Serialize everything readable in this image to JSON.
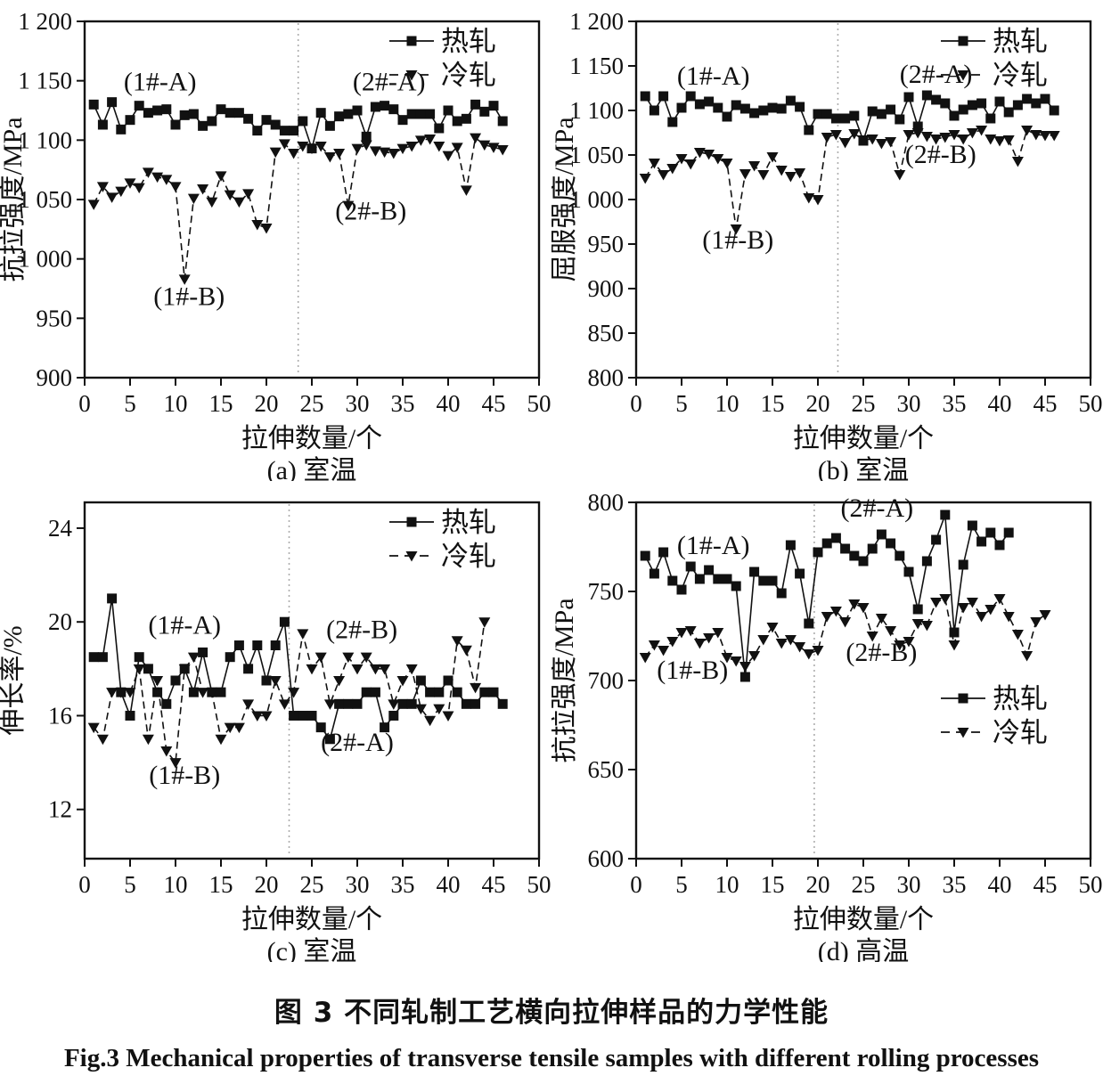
{
  "figure": {
    "caption_zh": "图 3  不同轧制工艺横向拉伸样品的力学性能",
    "caption_en": "Fig.3  Mechanical properties of transverse tensile samples with different rolling processes"
  },
  "chart_data": [
    {
      "id": "a",
      "type": "line",
      "title": "",
      "xlabel": "拉伸数量/个",
      "ylabel": "抗拉强度/MPa",
      "subcaption": "(a) 室温",
      "xlim": [
        0,
        50
      ],
      "ylim": [
        900,
        1200
      ],
      "xticks": [
        0,
        5,
        10,
        15,
        20,
        25,
        30,
        35,
        40,
        45,
        50
      ],
      "yticks": [
        900,
        950,
        1000,
        1050,
        1100,
        1150,
        1200
      ],
      "ytick_labels": [
        "900",
        "950",
        "1 000",
        "1 050",
        "1 100",
        "1 150",
        "1 200"
      ],
      "grid": false,
      "vline_x": 23.5,
      "legend_pos": "top-right",
      "series": [
        {
          "name": "热轧",
          "marker": "square",
          "line": "solid",
          "x_start": 1,
          "values": [
            1130,
            1113,
            1132,
            1109,
            1117,
            1129,
            1123,
            1125,
            1126,
            1113,
            1121,
            1122,
            1112,
            1116,
            1126,
            1123,
            1123,
            1118,
            1108,
            1117,
            1113,
            1108,
            1108,
            1116,
            1093,
            1123,
            1112,
            1120,
            1122,
            1125,
            1103,
            1128,
            1129,
            1126,
            1117,
            1122,
            1122,
            1122,
            1110,
            1125,
            1116,
            1118,
            1130,
            1124,
            1129,
            1116
          ]
        },
        {
          "name": "冷轧",
          "marker": "triangle-down",
          "line": "dashed",
          "x_start": 1,
          "values": [
            1046,
            1061,
            1052,
            1057,
            1064,
            1060,
            1073,
            1069,
            1067,
            1061,
            983,
            1051,
            1059,
            1048,
            1070,
            1054,
            1048,
            1055,
            1029,
            1026,
            1090,
            1097,
            1089,
            1095,
            1093,
            1095,
            1086,
            1089,
            1045,
            1093,
            1096,
            1091,
            1090,
            1089,
            1093,
            1095,
            1100,
            1101,
            1095,
            1087,
            1094,
            1058,
            1102,
            1096,
            1094,
            1092
          ]
        }
      ],
      "annotations": [
        {
          "text": "(1#-A)",
          "x": 8.3,
          "y": 1142
        },
        {
          "text": "(2#-A)",
          "x": 33.5,
          "y": 1142
        },
        {
          "text": "(1#-B)",
          "x": 11.5,
          "y": 961
        },
        {
          "text": "(2#-B)",
          "x": 31.5,
          "y": 1033
        }
      ]
    },
    {
      "id": "b",
      "type": "line",
      "title": "",
      "xlabel": "拉伸数量/个",
      "ylabel": "屈服强度/MPa",
      "subcaption": "(b) 室温",
      "xlim": [
        0,
        50
      ],
      "ylim": [
        800,
        1200
      ],
      "xticks": [
        0,
        5,
        10,
        15,
        20,
        25,
        30,
        35,
        40,
        45,
        50
      ],
      "yticks": [
        800,
        850,
        900,
        950,
        1000,
        1050,
        1100,
        1150,
        1200
      ],
      "ytick_labels": [
        "800",
        "850",
        "900",
        "950",
        "1 000",
        "1 050",
        "1 100",
        "1 150",
        "1 200"
      ],
      "grid": false,
      "vline_x": 22.2,
      "legend_pos": "top-right",
      "series": [
        {
          "name": "热轧",
          "marker": "square",
          "line": "solid",
          "x_start": 1,
          "values": [
            1116,
            1100,
            1116,
            1087,
            1103,
            1116,
            1107,
            1110,
            1103,
            1093,
            1106,
            1102,
            1097,
            1100,
            1103,
            1102,
            1111,
            1104,
            1078,
            1096,
            1096,
            1091,
            1091,
            1094,
            1066,
            1099,
            1096,
            1101,
            1090,
            1115,
            1082,
            1117,
            1112,
            1108,
            1094,
            1101,
            1106,
            1108,
            1091,
            1110,
            1098,
            1106,
            1113,
            1108,
            1113,
            1100
          ]
        },
        {
          "name": "冷轧",
          "marker": "triangle-down",
          "line": "dashed",
          "x_start": 1,
          "values": [
            1024,
            1041,
            1028,
            1035,
            1046,
            1040,
            1053,
            1051,
            1046,
            1041,
            967,
            1029,
            1038,
            1028,
            1048,
            1033,
            1026,
            1030,
            1002,
            1000,
            1070,
            1073,
            1064,
            1074,
            1067,
            1068,
            1063,
            1065,
            1028,
            1073,
            1075,
            1071,
            1068,
            1070,
            1073,
            1068,
            1075,
            1078,
            1068,
            1066,
            1067,
            1043,
            1078,
            1073,
            1072,
            1072
          ]
        }
      ],
      "annotations": [
        {
          "text": "(1#-A)",
          "x": 8.5,
          "y": 1129
        },
        {
          "text": "(2#-A)",
          "x": 33.0,
          "y": 1131
        },
        {
          "text": "(1#-B)",
          "x": 11.2,
          "y": 945
        },
        {
          "text": "(2#-B)",
          "x": 33.5,
          "y": 1041
        }
      ]
    },
    {
      "id": "c",
      "type": "line",
      "title": "",
      "xlabel": "拉伸数量/个",
      "ylabel": "伸长率/%",
      "subcaption": "(c) 室温",
      "xlim": [
        0,
        50
      ],
      "ylim": [
        9.9,
        25.1
      ],
      "xticks": [
        0,
        5,
        10,
        15,
        20,
        25,
        30,
        35,
        40,
        45,
        50
      ],
      "yticks": [
        12,
        16,
        20,
        24
      ],
      "ytick_labels": [
        "12",
        "16",
        "20",
        "24"
      ],
      "grid": false,
      "vline_x": 22.5,
      "legend_pos": "top-right",
      "series": [
        {
          "name": "热轧",
          "marker": "square",
          "line": "solid",
          "x_start": 1,
          "values": [
            18.5,
            18.5,
            21,
            17,
            16,
            18.5,
            18,
            17,
            16.5,
            17.5,
            18,
            17,
            18.7,
            17,
            17,
            18.5,
            19,
            18,
            19,
            17.5,
            19,
            20,
            16,
            16,
            16,
            15.5,
            15,
            16.5,
            16.5,
            16.5,
            17,
            17,
            15.5,
            16,
            16.5,
            16.5,
            17.5,
            17,
            17,
            17.5,
            17,
            16.5,
            16.5,
            17,
            17,
            16.5
          ]
        },
        {
          "name": "冷轧",
          "marker": "triangle-down",
          "line": "dashed",
          "x_start": 1,
          "values": [
            15.5,
            15,
            17,
            17,
            17,
            18,
            15,
            17.5,
            14.5,
            14,
            18,
            18.5,
            17,
            17,
            15,
            15.5,
            15.5,
            16.5,
            16,
            16,
            17.5,
            16.5,
            17,
            19.5,
            18,
            18.5,
            16.5,
            17.5,
            18.5,
            18,
            18.5,
            18,
            18,
            16.5,
            17.5,
            18,
            16.3,
            15.8,
            16.3,
            16,
            19.2,
            18.8,
            17.2,
            20
          ]
        }
      ],
      "annotations": [
        {
          "text": "(1#-A)",
          "x": 11.0,
          "y": 19.5
        },
        {
          "text": "(2#-B)",
          "x": 30.5,
          "y": 19.3
        },
        {
          "text": "(1#-B)",
          "x": 11.0,
          "y": 13.1
        },
        {
          "text": "(2#-A)",
          "x": 30.0,
          "y": 14.5
        }
      ]
    },
    {
      "id": "d",
      "type": "line",
      "title": "",
      "xlabel": "拉伸数量/个",
      "ylabel": "抗拉强度/MPa",
      "subcaption": "(d) 高温",
      "xlim": [
        0,
        50
      ],
      "ylim": [
        600,
        800
      ],
      "xticks": [
        0,
        5,
        10,
        15,
        20,
        25,
        30,
        35,
        40,
        45,
        50
      ],
      "yticks": [
        600,
        650,
        700,
        750,
        800
      ],
      "ytick_labels": [
        "600",
        "650",
        "700",
        "750",
        "800"
      ],
      "grid": false,
      "vline_x": 19.6,
      "legend_pos": "mid-right",
      "series": [
        {
          "name": "热轧",
          "marker": "square",
          "line": "solid",
          "x_start": 1,
          "values": [
            770,
            760,
            772,
            756,
            751,
            764,
            757,
            762,
            757,
            757,
            753,
            702,
            761,
            756,
            756,
            749,
            776,
            760,
            732,
            772,
            777,
            780,
            774,
            770,
            767,
            774,
            782,
            777,
            770,
            761,
            740,
            767,
            779,
            793,
            727,
            765,
            787,
            778,
            783,
            776,
            783
          ]
        },
        {
          "name": "冷轧",
          "marker": "triangle-down",
          "line": "dashed",
          "x_start": 1,
          "values": [
            713,
            720,
            717,
            722,
            727,
            728,
            721,
            724,
            727,
            713,
            711,
            708,
            714,
            723,
            730,
            721,
            723,
            719,
            715,
            717,
            736,
            739,
            733,
            743,
            741,
            725,
            735,
            728,
            720,
            722,
            732,
            731,
            744,
            746,
            720,
            741,
            744,
            736,
            740,
            746,
            736,
            726,
            714,
            733,
            737
          ]
        }
      ],
      "annotations": [
        {
          "text": "(1#-A)",
          "x": 8.5,
          "y": 771
        },
        {
          "text": "(2#-A)",
          "x": 26.5,
          "y": 792
        },
        {
          "text": "(1#-B)",
          "x": 6.2,
          "y": 701
        },
        {
          "text": "(2#-B)",
          "x": 27.0,
          "y": 711
        }
      ]
    }
  ]
}
